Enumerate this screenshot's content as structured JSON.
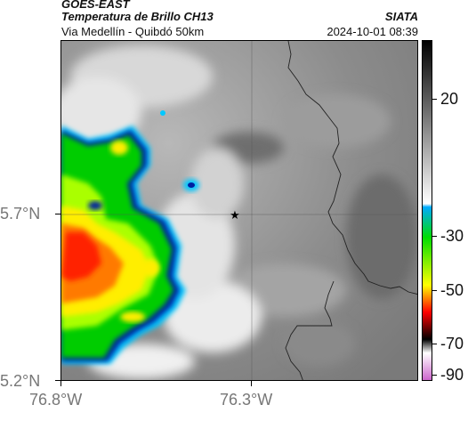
{
  "header": {
    "satellite": "GOES-EAST",
    "product": "Temperatura de Brillo CH13",
    "location": "Via Medellín - Quibdó 50km",
    "org": "SIATA",
    "datetime": "2024-10-01 08:39"
  },
  "axes": {
    "lat_ticks": [
      "5.7°N",
      "5.2°N"
    ],
    "lon_ticks": [
      "76.8°W",
      "76.3°W"
    ]
  },
  "colorbar": {
    "labels": [
      "20",
      "-30",
      "-50",
      "-70",
      "-90"
    ],
    "stops": [
      "#000000",
      "#ffffff",
      "#00aaff",
      "#00dd00",
      "#ffff00",
      "#ff0000",
      "#800000",
      "#000000",
      "#ffffff",
      "#cc66cc"
    ]
  },
  "map": {
    "marker": "star-icon",
    "colors": {
      "deep_cold": "#ff2200",
      "cold": "#ffee00",
      "mid": "#00cc00",
      "edge": "#0022aa",
      "cloud": "#f2f2f2",
      "clear": "#8a8a8a",
      "border": "#222222"
    }
  }
}
